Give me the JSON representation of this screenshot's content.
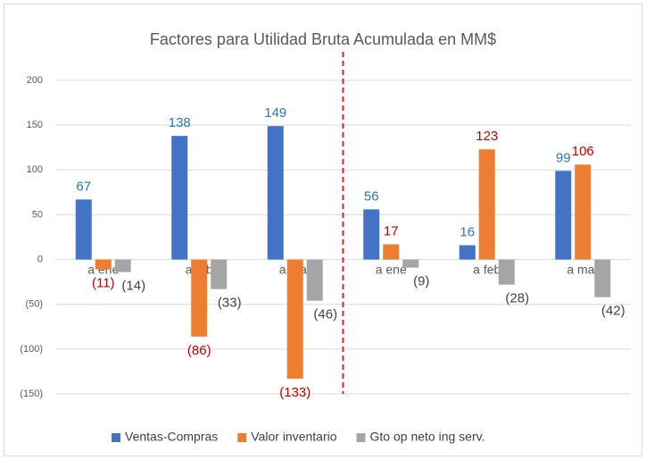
{
  "chart_data": {
    "type": "bar",
    "title": "Factores para Utilidad Bruta Acumulada en MM$",
    "categories": [
      "a ene",
      "a feb",
      "a mar",
      "a ene",
      "a feb",
      "a mar"
    ],
    "series": [
      {
        "name": "Ventas-Compras",
        "color": "#4472c4",
        "label_color": "#2e75b6",
        "values": [
          67,
          138,
          149,
          56,
          16,
          99
        ]
      },
      {
        "name": "Valor inventario",
        "color": "#ed7d31",
        "label_color": "#c00000",
        "values": [
          -11,
          -86,
          -133,
          17,
          123,
          106
        ],
        "value_labels": [
          "(11)",
          "(86)",
          "(133)",
          "17",
          "123",
          "106"
        ]
      },
      {
        "name": "Gto op neto ing serv.",
        "color": "#a5a5a5",
        "label_color": "#404040",
        "values": [
          -14,
          -33,
          -46,
          -9,
          -28,
          -42
        ],
        "value_labels": [
          "(14)",
          "(33)",
          "(46)",
          "(9)",
          "(28)",
          "(42)"
        ]
      }
    ],
    "ylim": [
      -150,
      200
    ],
    "yticks": [
      200,
      150,
      100,
      50,
      0,
      {
        "value": -50,
        "label": "(50)"
      },
      {
        "value": -100,
        "label": "(100)"
      },
      {
        "value": -150,
        "label": "(150)"
      }
    ],
    "grid": true,
    "legend": "bottom"
  }
}
